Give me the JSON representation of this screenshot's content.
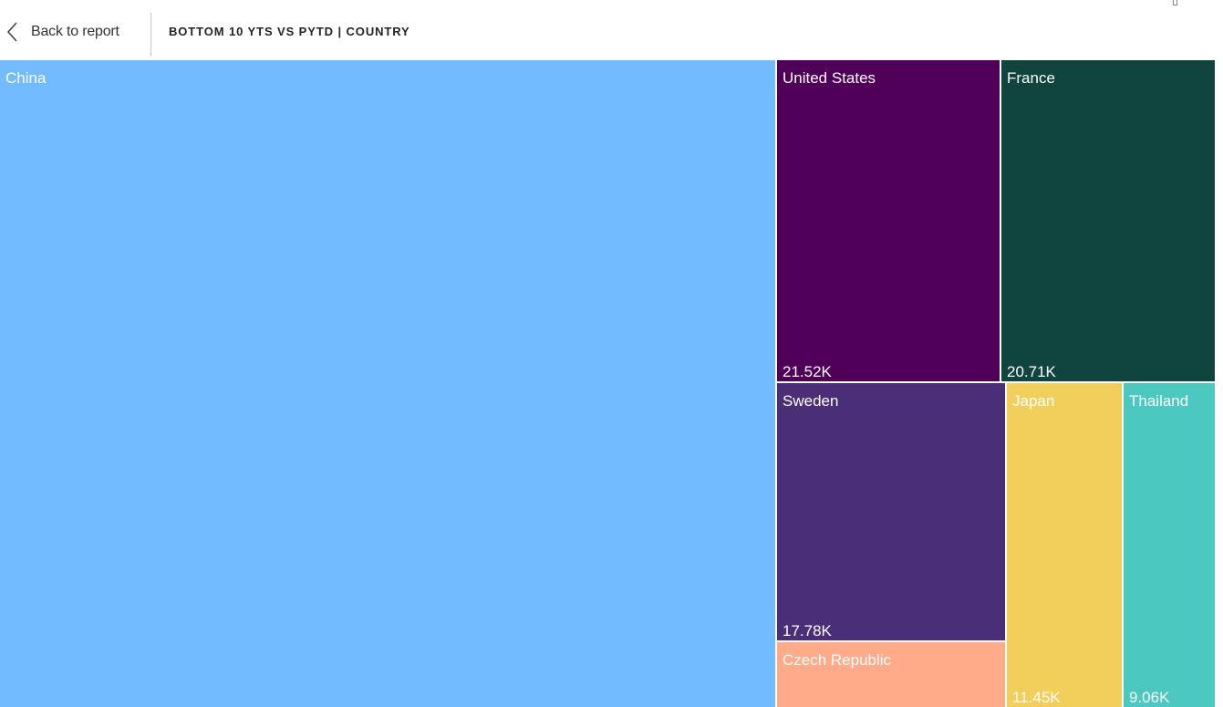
{
  "header": {
    "back_label": "Back to report",
    "title": "BOTTOM 10 YTS VS PYTD | COUNTRY"
  },
  "chart_data": {
    "type": "treemap",
    "title": "BOTTOM 10 YTS VS PYTD | COUNTRY",
    "nodes": [
      {
        "name": "China",
        "value_label": "",
        "color": "#71BBFE"
      },
      {
        "name": "United States",
        "value_label": "21.52K",
        "color": "#510059"
      },
      {
        "name": "France",
        "value_label": "20.71K",
        "color": "#0F443F"
      },
      {
        "name": "Sweden",
        "value_label": "17.78K",
        "color": "#4B2E78"
      },
      {
        "name": "Czech Republic",
        "value_label": "",
        "color": "#FFAA88"
      },
      {
        "name": "Japan",
        "value_label": "11.45K",
        "color": "#F2CF5B"
      },
      {
        "name": "Thailand",
        "value_label": "9.06K",
        "color": "#4BC8BF"
      }
    ]
  }
}
